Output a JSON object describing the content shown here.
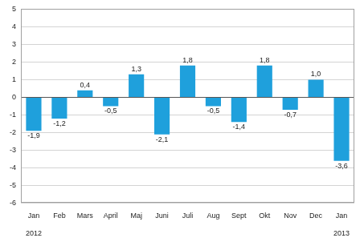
{
  "chart_data": {
    "type": "bar",
    "categories": [
      "Jan",
      "Feb",
      "Mars",
      "April",
      "Maj",
      "Juni",
      "Juli",
      "Aug",
      "Sept",
      "Okt",
      "Nov",
      "Dec",
      "Jan"
    ],
    "values": [
      -1.9,
      -1.2,
      0.4,
      -0.5,
      1.3,
      -2.1,
      1.8,
      -0.5,
      -1.4,
      1.8,
      -0.7,
      1.0,
      -3.6
    ],
    "value_labels": [
      "-1,9",
      "-1,2",
      "0,4",
      "-0,5",
      "1,3",
      "-2,1",
      "1,8",
      "-0,5",
      "-1,4",
      "1,8",
      "-0,7",
      "1,0",
      "-3,6"
    ],
    "annotations": [
      {
        "text": "2012",
        "category": 0
      },
      {
        "text": "2013",
        "category": 12
      }
    ],
    "color": "#1fa0dc",
    "ylim": [
      -6,
      5
    ],
    "yticks": [
      -6,
      -5,
      -4,
      -3,
      -2,
      -1,
      0,
      1,
      2,
      3,
      4,
      5
    ],
    "grid": true,
    "data_labels": true
  }
}
